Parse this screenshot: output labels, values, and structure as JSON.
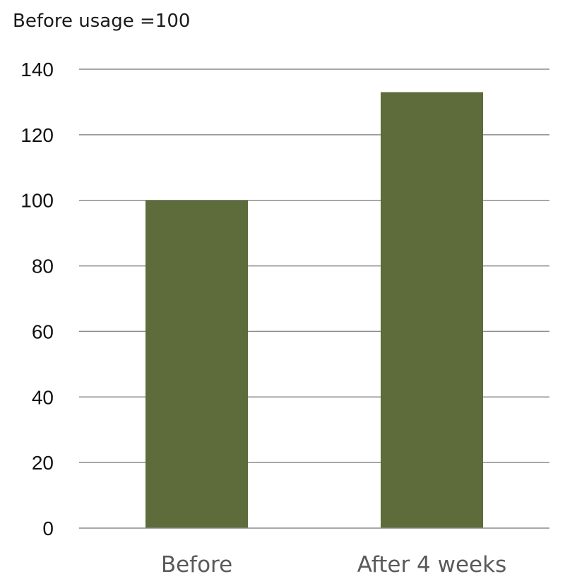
{
  "chart_data": {
    "type": "bar",
    "subtitle": "Before usage =100",
    "categories": [
      "Before",
      "After 4 weeks"
    ],
    "values": [
      100,
      133
    ],
    "ylim": [
      0,
      140
    ],
    "yticks": [
      "0",
      "20",
      "40",
      "60",
      "80",
      "100",
      "120",
      "140"
    ],
    "grid": true,
    "legend": "none",
    "bar_color": "#5e6b3a"
  }
}
